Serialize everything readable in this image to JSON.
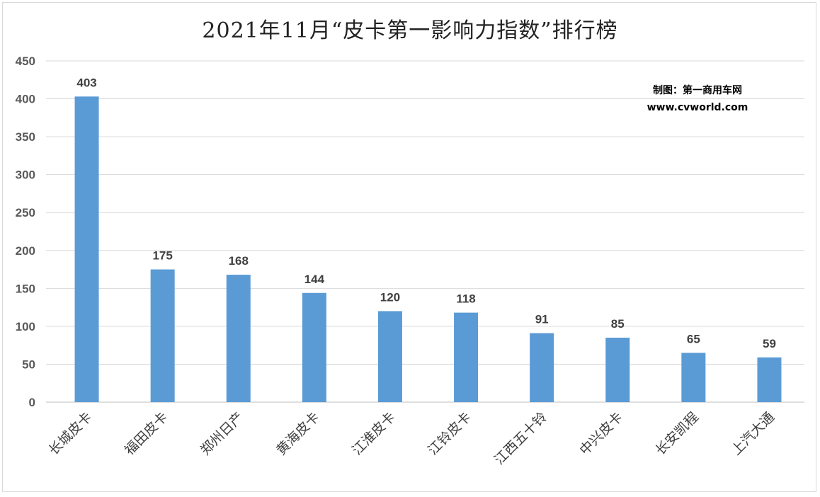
{
  "chart_data": {
    "type": "bar",
    "title": "2021年11月“皮卡第一影响力指数”排行榜",
    "categories": [
      "长城皮卡",
      "福田皮卡",
      "郑州日产",
      "黄海皮卡",
      "江淮皮卡",
      "江铃皮卡",
      "江西五十铃",
      "中兴皮卡",
      "长安凯程",
      "上汽大通"
    ],
    "values": [
      403,
      175,
      168,
      144,
      120,
      118,
      91,
      85,
      65,
      59
    ],
    "ylim": [
      0,
      450
    ],
    "yticks": [
      0,
      50,
      100,
      150,
      200,
      250,
      300,
      350,
      400,
      450
    ],
    "xlabel": "",
    "ylabel": "",
    "grid": true,
    "bar_color": "#5b9bd5",
    "credit_line1": "制图：第一商用车网",
    "credit_line2": "www.cvworld.com"
  }
}
